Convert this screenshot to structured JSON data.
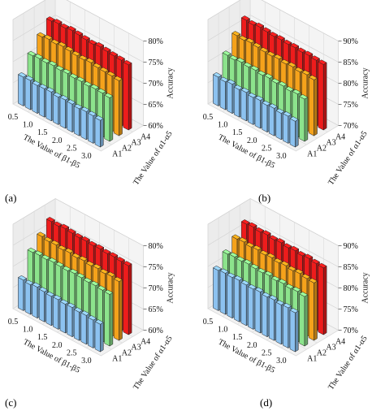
{
  "chart_data": [
    {
      "type": "bar",
      "panel_label": "(a)",
      "x_ticks": [
        "0.5",
        "1.0",
        "1.5",
        "2.0",
        "2.5",
        "3.0"
      ],
      "xlabel": "The Value of β1-β5",
      "ylabel": "The Value of α1-α5",
      "zlabel": "Accuracy",
      "z_ticks": [
        "60%",
        "65%",
        "70%",
        "75%",
        "80%"
      ],
      "zlim": [
        60,
        80
      ],
      "series": [
        {
          "name": "A1",
          "color": "#8cc2f0",
          "values": [
            66.8,
            66.9,
            66.6,
            66.7,
            66.8,
            66.5,
            66.7,
            66.6,
            66.4,
            66.6,
            66.5,
            66.3
          ]
        },
        {
          "name": "A2",
          "color": "#8ce38c",
          "values": [
            70.5,
            70.7,
            70.6,
            70.8,
            70.6,
            70.7,
            70.5,
            70.6,
            70.4,
            70.6,
            70.5,
            70.3
          ]
        },
        {
          "name": "A3",
          "color": "#f5a21b",
          "values": [
            73.6,
            73.9,
            73.7,
            74.0,
            73.8,
            73.6,
            73.5,
            73.7,
            73.4,
            73.3,
            73.2,
            73.0
          ]
        },
        {
          "name": "A4",
          "color": "#ee1c1c",
          "values": [
            76.0,
            76.3,
            76.1,
            76.4,
            76.2,
            76.0,
            75.8,
            76.1,
            75.9,
            75.7,
            75.6,
            75.4
          ]
        }
      ]
    },
    {
      "type": "bar",
      "panel_label": "(b)",
      "x_ticks": [
        "0.5",
        "1.0",
        "1.5",
        "2.0",
        "2.5",
        "3.0"
      ],
      "xlabel": "The Value of β1-β5",
      "ylabel": "The Value of α1-α5",
      "zlabel": "Accuracy",
      "z_ticks": [
        "70%",
        "75%",
        "80%",
        "85%",
        "90%"
      ],
      "zlim": [
        70,
        90
      ],
      "series": [
        {
          "name": "A1",
          "color": "#8cc2f0",
          "values": [
            76.8,
            76.6,
            76.9,
            76.5,
            76.7,
            76.4,
            76.6,
            76.3,
            76.5,
            76.2,
            76.4,
            76.1
          ]
        },
        {
          "name": "A2",
          "color": "#8ce38c",
          "values": [
            80.6,
            80.4,
            80.7,
            80.5,
            80.6,
            80.3,
            80.5,
            80.2,
            80.4,
            80.1,
            80.3,
            80.0
          ]
        },
        {
          "name": "A3",
          "color": "#f5a21b",
          "values": [
            83.9,
            83.7,
            84.0,
            83.8,
            83.6,
            83.5,
            83.7,
            83.4,
            83.6,
            83.3,
            83.5,
            83.2
          ]
        },
        {
          "name": "A4",
          "color": "#ee1c1c",
          "values": [
            86.2,
            86.0,
            86.3,
            86.1,
            85.9,
            86.0,
            85.8,
            85.9,
            85.7,
            85.8,
            85.6,
            85.5
          ]
        }
      ]
    },
    {
      "type": "bar",
      "panel_label": "(c)",
      "x_ticks": [
        "0.5",
        "1.0",
        "1.5",
        "2.0",
        "2.5",
        "3.0"
      ],
      "xlabel": "The Value of β1-β5",
      "ylabel": "The Value of α1-α5",
      "zlabel": "Accuracy",
      "z_ticks": [
        "60%",
        "65%",
        "70%",
        "75%",
        "80%"
      ],
      "zlim": [
        60,
        80
      ],
      "series": [
        {
          "name": "A1",
          "color": "#8cc2f0",
          "values": [
            67.2,
            67.0,
            67.3,
            67.1,
            66.9,
            67.0,
            66.8,
            66.9,
            66.7,
            66.8,
            66.6,
            66.5
          ]
        },
        {
          "name": "A2",
          "color": "#8ce38c",
          "values": [
            72.4,
            72.6,
            72.5,
            72.7,
            72.6,
            72.5,
            72.7,
            72.6,
            72.4,
            72.5,
            72.3,
            72.2
          ]
        },
        {
          "name": "A3",
          "color": "#f5a21b",
          "values": [
            74.8,
            74.5,
            74.6,
            74.3,
            74.5,
            74.2,
            74.4,
            74.1,
            74.3,
            74.0,
            74.2,
            73.9
          ]
        },
        {
          "name": "A4",
          "color": "#ee1c1c",
          "values": [
            77.0,
            76.8,
            77.1,
            76.9,
            76.7,
            76.8,
            76.6,
            76.7,
            76.5,
            76.6,
            76.4,
            76.3
          ]
        }
      ]
    },
    {
      "type": "bar",
      "panel_label": "(d)",
      "x_ticks": [
        "0.5",
        "1.0",
        "1.5",
        "2.0",
        "2.5",
        "3.0"
      ],
      "xlabel": "The Value of β1-β5",
      "ylabel": "The Value of α1-α5",
      "zlabel": "Accuracy",
      "z_ticks": [
        "70%",
        "75%",
        "80%",
        "85%",
        "90%"
      ],
      "zlim": [
        70,
        90
      ],
      "series": [
        {
          "name": "A1",
          "color": "#8cc2f0",
          "values": [
            79.5,
            79.7,
            79.6,
            79.8,
            79.6,
            79.5,
            79.7,
            79.4,
            79.6,
            79.3,
            79.5,
            79.2
          ]
        },
        {
          "name": "A2",
          "color": "#8ce38c",
          "values": [
            82.0,
            82.2,
            82.1,
            82.3,
            82.1,
            82.0,
            82.2,
            81.9,
            82.1,
            81.8,
            82.0,
            81.7
          ]
        },
        {
          "name": "A3",
          "color": "#f5a21b",
          "values": [
            84.2,
            84.4,
            84.1,
            84.3,
            84.0,
            84.2,
            83.9,
            84.1,
            83.8,
            84.0,
            83.7,
            83.6
          ]
        },
        {
          "name": "A4",
          "color": "#ee1c1c",
          "values": [
            86.4,
            86.6,
            86.3,
            86.5,
            86.2,
            86.4,
            86.1,
            86.3,
            86.0,
            86.2,
            85.9,
            85.8
          ]
        }
      ]
    }
  ]
}
